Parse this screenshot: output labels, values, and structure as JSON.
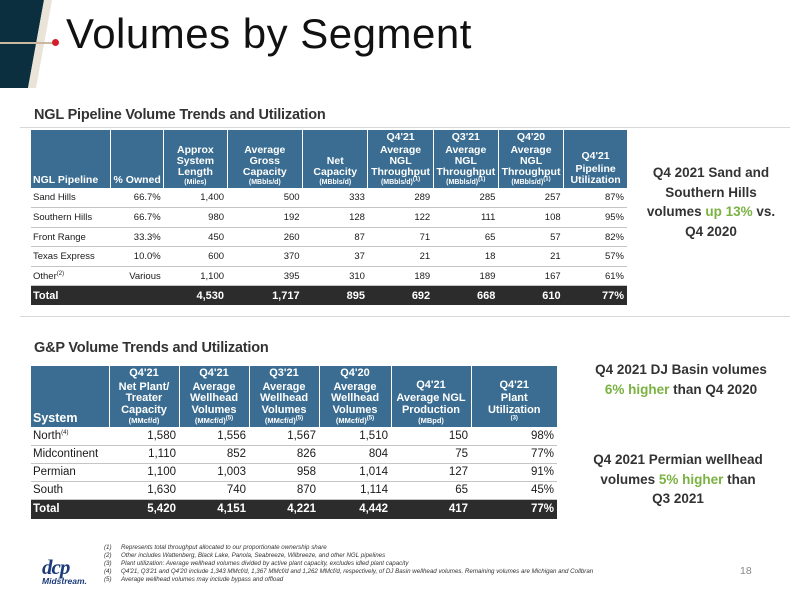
{
  "header": {
    "title": "Volumes by Segment"
  },
  "ngl": {
    "section_title": "NGL Pipeline Volume Trends and Utilization",
    "headers": [
      {
        "top": "",
        "main": "NGL Pipeline",
        "unit": ""
      },
      {
        "top": "",
        "main": "% Owned",
        "unit": ""
      },
      {
        "top": "",
        "main": "Approx System Length",
        "unit": "(Miles)"
      },
      {
        "top": "",
        "main": "Average Gross Capacity",
        "unit": "(MBbls/d)"
      },
      {
        "top": "",
        "main": "Net Capacity",
        "unit": "(MBbls/d)"
      },
      {
        "top": "Q4'21",
        "main": "Average NGL Throughput",
        "unit": "(MBbls/d)",
        "sup": "(1)"
      },
      {
        "top": "Q3'21",
        "main": "Average NGL Throughput",
        "unit": "(MBbls/d)",
        "sup": "(1)"
      },
      {
        "top": "Q4'20",
        "main": "Average NGL Throughput",
        "unit": "(MBbls/d)",
        "sup": "(1)"
      },
      {
        "top": "Q4'21",
        "main": "Pipeline Utilization",
        "unit": ""
      }
    ],
    "rows": [
      {
        "name": "Sand Hills",
        "sup": "",
        "cells": [
          "66.7%",
          "1,400",
          "500",
          "333",
          "289",
          "285",
          "257",
          "87%"
        ]
      },
      {
        "name": "Southern Hills",
        "sup": "",
        "cells": [
          "66.7%",
          "980",
          "192",
          "128",
          "122",
          "111",
          "108",
          "95%"
        ]
      },
      {
        "name": "Front Range",
        "sup": "",
        "cells": [
          "33.3%",
          "450",
          "260",
          "87",
          "71",
          "65",
          "57",
          "82%"
        ]
      },
      {
        "name": "Texas Express",
        "sup": "",
        "cells": [
          "10.0%",
          "600",
          "370",
          "37",
          "21",
          "18",
          "21",
          "57%"
        ]
      },
      {
        "name": "Other",
        "sup": "(2)",
        "cells": [
          "Various",
          "1,100",
          "395",
          "310",
          "189",
          "189",
          "167",
          "61%"
        ]
      }
    ],
    "total": {
      "name": "Total",
      "cells": [
        "",
        "4,530",
        "1,717",
        "895",
        "692",
        "668",
        "610",
        "77%"
      ]
    }
  },
  "gp": {
    "section_title": "G&P Volume Trends and Utilization",
    "headers": [
      {
        "top": "",
        "main": "System",
        "unit": ""
      },
      {
        "top": "Q4'21",
        "main": "Net Plant/ Treater Capacity",
        "unit": "(MMcf/d)"
      },
      {
        "top": "Q4'21",
        "main": "Average Wellhead Volumes",
        "unit": "(MMcf/d)",
        "sup": "(5)"
      },
      {
        "top": "Q3'21",
        "main": "Average Wellhead Volumes",
        "unit": "(MMcf/d)",
        "sup": "(5)"
      },
      {
        "top": "Q4'20",
        "main": "Average Wellhead Volumes",
        "unit": "(MMcf/d)",
        "sup": "(5)"
      },
      {
        "top": "Q4'21",
        "main": "Average NGL Production",
        "unit": "(MBpd)"
      },
      {
        "top": "Q4'21",
        "main": "Plant Utilization",
        "unit": "",
        "sup": "(3)"
      }
    ],
    "rows": [
      {
        "name": "North",
        "sup": "(4)",
        "cells": [
          "1,580",
          "1,556",
          "1,567",
          "1,510",
          "150",
          "98%"
        ]
      },
      {
        "name": "Midcontinent",
        "sup": "",
        "cells": [
          "1,110",
          "852",
          "826",
          "804",
          "75",
          "77%"
        ]
      },
      {
        "name": "Permian",
        "sup": "",
        "cells": [
          "1,100",
          "1,003",
          "958",
          "1,014",
          "127",
          "91%"
        ]
      },
      {
        "name": "South",
        "sup": "",
        "cells": [
          "1,630",
          "740",
          "870",
          "1,114",
          "65",
          "45%"
        ]
      }
    ],
    "total": {
      "name": "Total",
      "cells": [
        "5,420",
        "4,151",
        "4,221",
        "4,442",
        "417",
        "77%"
      ]
    }
  },
  "callouts": {
    "c1": {
      "pre": "Q4 2021 Sand and Southern Hills volumes ",
      "hl": "up 13%",
      "post": " vs. Q4 2020"
    },
    "c2": {
      "pre": "Q4 2021 DJ Basin volumes ",
      "hl": "6% higher",
      "post": " than Q4 2020"
    },
    "c3": {
      "pre": "Q4 2021 Permian wellhead volumes ",
      "hl": "5% higher",
      "post": " than Q3 2021"
    },
    "highlight_color": "#7ab241"
  },
  "footnotes": [
    {
      "num": "(1)",
      "text": "Represents total throughput allocated to our proportionate ownership share"
    },
    {
      "num": "(2)",
      "text": "Other includes Wattenberg, Black Lake, Panola, Seabreeze, Wilbreeze, and other NGL pipelines"
    },
    {
      "num": "(3)",
      "text": "Plant utilization: Average wellhead volumes divided by active plant capacity, excludes idled plant capacity"
    },
    {
      "num": "(4)",
      "text": "Q4'21, Q3'21 and Q4'20 include 1,343 MMcf/d, 1,367 MMcf/d and 1,262 MMcf/d, respectively, of DJ Basin wellhead volumes. Remaining volumes are Michigan and Collbran"
    },
    {
      "num": "(5)",
      "text": "Average wellhead volumes may include bypass and offload"
    }
  ],
  "page_number": "18",
  "logo": {
    "mark": "dcp",
    "sub": "Midstream."
  },
  "colors": {
    "header_bg": "#3a6d91",
    "total_bg": "#2c2c2c",
    "accent_red": "#d21f2d",
    "dark_navy": "#0c2f3f"
  }
}
